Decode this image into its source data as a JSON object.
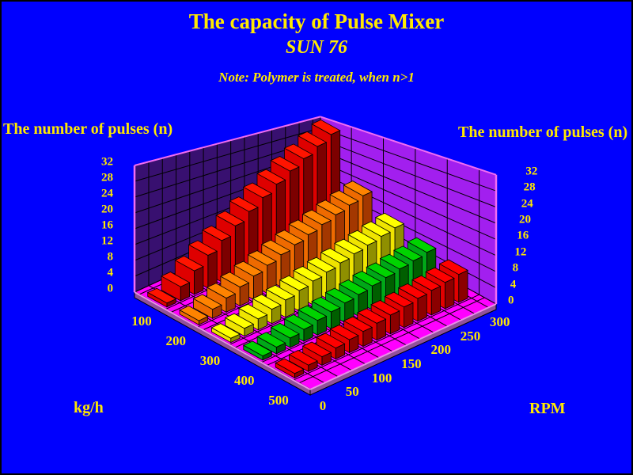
{
  "window": {
    "background": "#0000FE",
    "border": "#000000",
    "text_color": "#FFE900"
  },
  "title": {
    "line1": "The capacity of Pulse Mixer",
    "line2": "SUN 76",
    "note": "Note: Polymer is treated, when n>1"
  },
  "axes": {
    "left_title": "The number of pulses (n)",
    "right_title": "The number of pulses (n)",
    "kgh_unit": "kg/h",
    "rpm_unit": "RPM",
    "n_ticks": [
      0,
      4,
      8,
      12,
      16,
      20,
      24,
      28,
      32
    ],
    "kgh_labels": [
      100,
      200,
      300,
      400,
      500
    ],
    "rpm_labels": [
      0,
      50,
      100,
      150,
      200,
      250,
      300
    ]
  },
  "chart_data": {
    "type": "bar",
    "subtype": "3d-grid-bars",
    "title": "The capacity of Pulse Mixer SUN 76",
    "xlabel": "kg/h",
    "zlabel": "RPM",
    "ylabel": "The number of pulses (n)",
    "ylim": [
      0,
      32
    ],
    "grid": true,
    "rpm": [
      0,
      25,
      50,
      75,
      100,
      125,
      150,
      175,
      200,
      225,
      250,
      275,
      300
    ],
    "series": [
      {
        "name": "100 kg/h",
        "kgh": 100,
        "values": [
          1,
          3.6,
          6.2,
          8.8,
          11.3,
          13.9,
          16.5,
          19.1,
          21.7,
          24.3,
          26.8,
          29.4,
          32
        ]
      },
      {
        "name": "200 kg/h",
        "kgh": 200,
        "values": [
          1,
          2.3,
          3.6,
          4.9,
          6.2,
          7.5,
          8.8,
          10.0,
          11.3,
          12.6,
          13.9,
          15.2,
          16.5
        ]
      },
      {
        "name": "300 kg/h",
        "kgh": 300,
        "values": [
          1,
          1.9,
          2.7,
          3.6,
          4.4,
          5.3,
          6.2,
          7.0,
          7.9,
          8.8,
          9.6,
          10.5,
          11.3
        ]
      },
      {
        "name": "400 kg/h",
        "kgh": 400,
        "values": [
          1,
          1.6,
          2.3,
          2.9,
          3.6,
          4.2,
          4.9,
          5.5,
          6.2,
          6.8,
          7.5,
          8.1,
          8.8
        ]
      },
      {
        "name": "500 kg/h",
        "kgh": 500,
        "values": [
          1,
          1.5,
          2.0,
          2.6,
          3.1,
          3.6,
          4.1,
          4.6,
          5.1,
          5.7,
          6.2,
          6.7,
          7.2
        ]
      }
    ]
  },
  "colors": {
    "background": "#0000FE",
    "text": "#FFE900",
    "back_wall": "#381070",
    "right_wall": "#A21FEF",
    "wall_grid": "#000000",
    "wall_edge_pink": "#F26CF2",
    "floor": "#FF00FF",
    "floor_grid": "#000000",
    "floor_side": "#91519B",
    "floor_edge_pink": "#E98FE9",
    "series_faces": [
      {
        "kgh": 100,
        "top": "#FF1400",
        "front": "#DE0000",
        "side": "#7C0000"
      },
      {
        "kgh": 200,
        "top": "#FF8300",
        "front": "#EE6A00",
        "side": "#A33700"
      },
      {
        "kgh": 300,
        "top": "#FFFF00",
        "front": "#EFE400",
        "side": "#8F8F00"
      },
      {
        "kgh": 400,
        "top": "#00D400",
        "front": "#00A818",
        "side": "#005F00"
      },
      {
        "kgh": 500,
        "top": "#FF0000",
        "front": "#E30000",
        "side": "#8B0000"
      }
    ]
  }
}
